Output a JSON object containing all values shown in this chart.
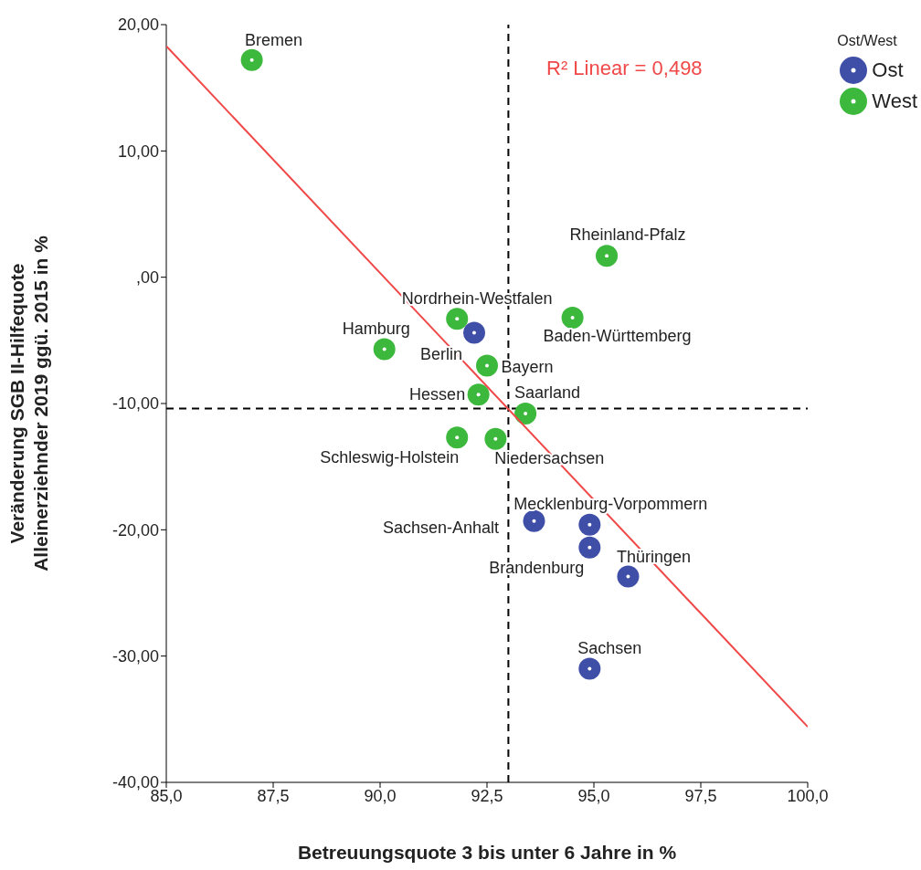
{
  "chart_data": {
    "type": "scatter",
    "xlabel": "Betreuungsquote 3 bis unter 6 Jahre in %",
    "ylabel": "Veränderung SGB II-Hilfequote Alleinerziehnder 2019 ggü. 2015 in %",
    "legend_title": "Ost/West",
    "legend": "top right",
    "marker": "circle",
    "xlim": [
      85,
      100
    ],
    "xticks": [
      {
        "value": 85,
        "label": "85,0"
      },
      {
        "value": 87.5,
        "label": "87,5"
      },
      {
        "value": 90,
        "label": "90,0"
      },
      {
        "value": 92.5,
        "label": "92,5"
      },
      {
        "value": 95,
        "label": "95,0"
      },
      {
        "value": 97.5,
        "label": "97,5"
      },
      {
        "value": 100,
        "label": "100,0"
      }
    ],
    "ylim": [
      -40,
      20
    ],
    "yticks": [
      {
        "value": -40,
        "label": "-40,00"
      },
      {
        "value": -30,
        "label": "-30,00"
      },
      {
        "value": -20,
        "label": "-20,00"
      },
      {
        "value": -10,
        "label": "-10,00"
      },
      {
        "value": 0,
        "label": ",00"
      },
      {
        "value": 10,
        "label": "10,00"
      },
      {
        "value": 20,
        "label": "20,00"
      }
    ],
    "series": [
      {
        "name": "Ost",
        "color": "#3f4fa8",
        "x": [
          92.2,
          93.6,
          94.9,
          94.9,
          95.8,
          94.9
        ],
        "values": [
          -4.4,
          -19.3,
          -19.6,
          -21.4,
          -23.7,
          -31.0
        ]
      },
      {
        "name": "West",
        "color": "#3cb83c",
        "x": [
          87.0,
          95.3,
          91.8,
          94.5,
          90.1,
          92.5,
          92.3,
          93.4,
          91.8,
          92.7
        ],
        "values": [
          17.2,
          1.7,
          -3.3,
          -3.2,
          -5.7,
          -7.0,
          -9.3,
          -10.8,
          -12.7,
          -12.8
        ]
      },
      {
        "type": "line",
        "color": "#f04848",
        "marker": "none",
        "x": [
          85,
          100
        ],
        "values": [
          18.3,
          -35.6
        ]
      }
    ],
    "ref_lines": [
      {
        "axis": "x",
        "value": 93.0,
        "color": "#000000",
        "line_style": "dashed"
      },
      {
        "axis": "y",
        "value": -10.4,
        "color": "#000000",
        "line_style": "dashed"
      }
    ],
    "annotations": [
      "R² Linear = 0,498",
      {
        "text": "Bremen",
        "x": 87.0,
        "y": 17.2
      },
      {
        "text": "Rheinland-Pfalz",
        "x": 95.3,
        "y": 1.7
      },
      {
        "text": "Nordrhein-Westfalen",
        "x": 91.8,
        "y": -3.3
      },
      {
        "text": "Berlin",
        "x": 92.2,
        "y": -4.4
      },
      {
        "text": "Baden-Württemberg",
        "x": 94.5,
        "y": -3.2
      },
      {
        "text": "Hamburg",
        "x": 90.1,
        "y": -5.7
      },
      {
        "text": "Bayern",
        "x": 92.5,
        "y": -7.0
      },
      {
        "text": "Hessen",
        "x": 92.3,
        "y": -9.3
      },
      {
        "text": "Saarland",
        "x": 93.4,
        "y": -10.8
      },
      {
        "text": "Schleswig-Holstein",
        "x": 91.8,
        "y": -12.7
      },
      {
        "text": "Niedersachsen",
        "x": 92.7,
        "y": -12.8
      },
      {
        "text": "Sachsen-Anhalt",
        "x": 93.6,
        "y": -19.3
      },
      {
        "text": "Mecklenburg-Vorpommern",
        "x": 94.9,
        "y": -19.6
      },
      {
        "text": "Brandenburg",
        "x": 94.9,
        "y": -21.4
      },
      {
        "text": "Thüringen",
        "x": 95.8,
        "y": -23.7
      },
      {
        "text": "Sachsen",
        "x": 94.9,
        "y": -31.0
      }
    ]
  }
}
